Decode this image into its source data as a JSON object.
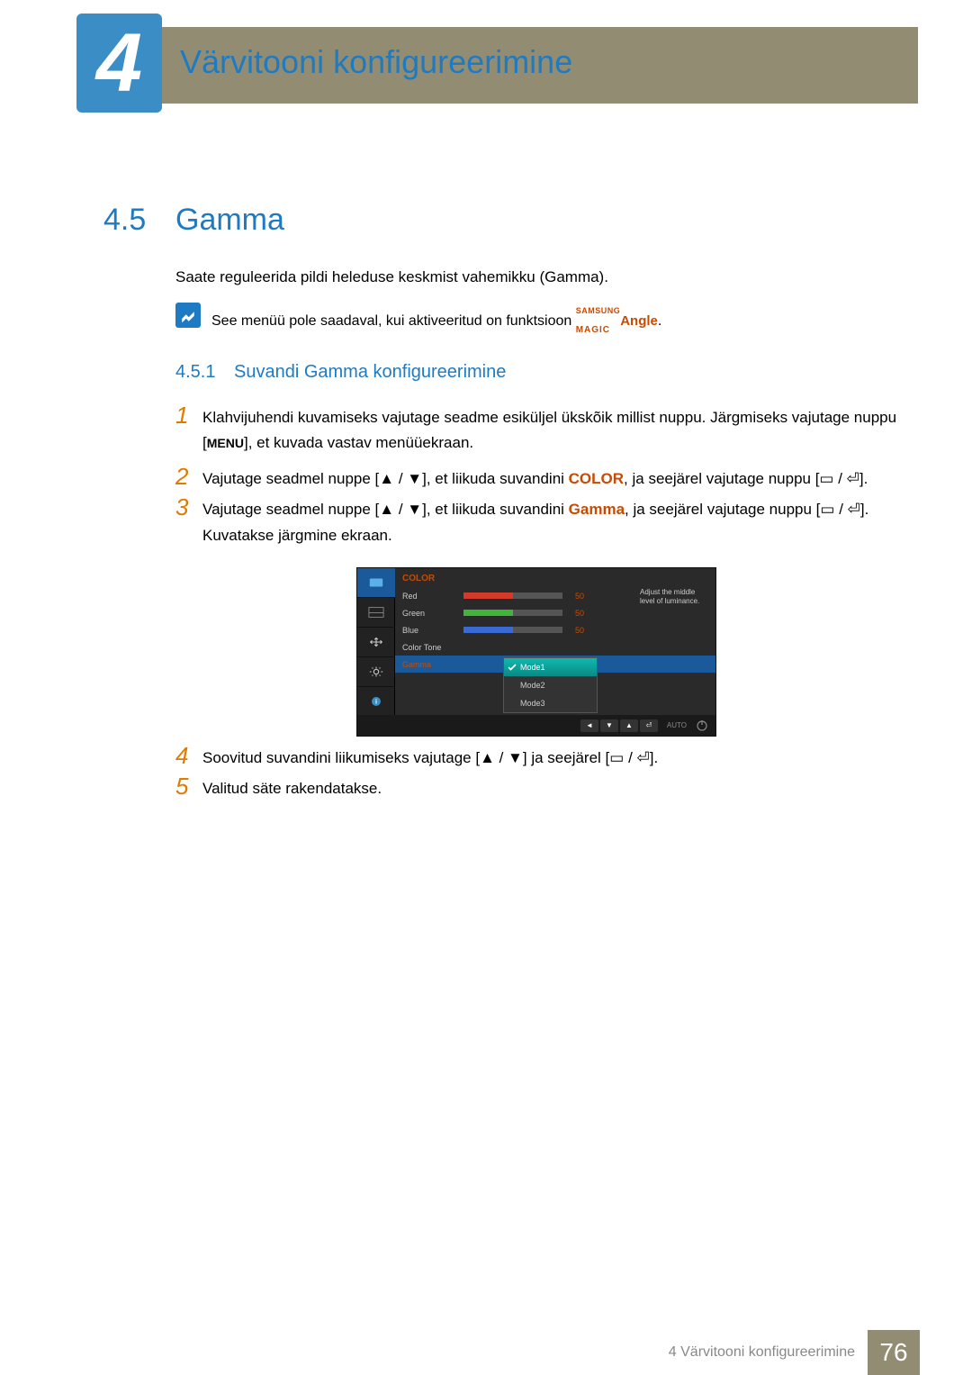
{
  "chapter": {
    "number": "4",
    "title": "Värvitooni konfigureerimine"
  },
  "section": {
    "number": "4.5",
    "title": "Gamma"
  },
  "intro": "Saate reguleerida pildi heleduse keskmist vahemikku (Gamma).",
  "note": {
    "text_before": "See menüü pole saadaval, kui aktiveeritud on funktsioon ",
    "magic_top": "SAMSUNG",
    "magic_bottom": "MAGIC",
    "magic_suffix": "Angle",
    "text_after": "."
  },
  "subsection": {
    "number": "4.5.1",
    "title": "Suvandi Gamma konfigureerimine"
  },
  "steps": {
    "s1": {
      "num": "1",
      "text_a": "Klahvijuhendi kuvamiseks vajutage seadme esiküljel ükskõik millist nuppu. Järgmiseks vajutage nuppu [",
      "menu": "MENU",
      "text_b": "], et kuvada vastav menüüekraan."
    },
    "s2": {
      "num": "2",
      "text_a": "Vajutage seadmel nuppe [",
      "text_b": "], et liikuda suvandini ",
      "kw": "COLOR",
      "text_c": ", ja seejärel vajutage nuppu [",
      "text_d": "]."
    },
    "s3": {
      "num": "3",
      "text_a": "Vajutage seadmel nuppe [",
      "text_b": "], et liikuda suvandini ",
      "kw": "Gamma",
      "text_c": ", ja seejärel vajutage nuppu [",
      "text_d": "]. Kuvatakse järgmine ekraan."
    },
    "s4": {
      "num": "4",
      "text_a": "Soovitud suvandini liikumiseks vajutage [",
      "text_b": "] ja seejärel [",
      "text_c": "]."
    },
    "s5": {
      "num": "5",
      "text": "Valitud säte rakendatakse."
    }
  },
  "osd": {
    "title": "COLOR",
    "rows": {
      "red": {
        "label": "Red",
        "value": "50",
        "fill_pct": 50,
        "fill_color": "#d43a2a"
      },
      "green": {
        "label": "Green",
        "value": "50",
        "fill_pct": 50,
        "fill_color": "#3fb53a"
      },
      "blue": {
        "label": "Blue",
        "value": "50",
        "fill_pct": 50,
        "fill_color": "#3a6ad4"
      },
      "colortone": {
        "label": "Color Tone"
      },
      "gamma": {
        "label": "Gamma"
      }
    },
    "dropdown": {
      "mode1": "Mode1",
      "mode2": "Mode2",
      "mode3": "Mode3"
    },
    "tip": "Adjust the middle level of luminance.",
    "nav": {
      "auto": "AUTO"
    }
  },
  "footer": {
    "text": "4 Värvitooni konfigureerimine",
    "page": "76"
  }
}
